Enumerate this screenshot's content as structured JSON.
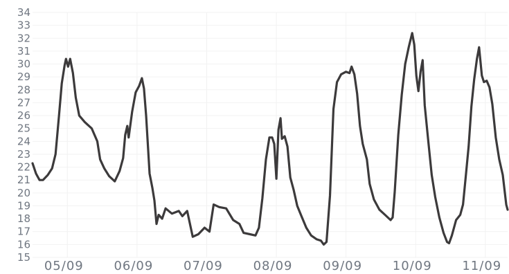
{
  "chart_data": {
    "type": "line",
    "title": "",
    "xlabel": "",
    "ylabel": "",
    "grid": true,
    "ylim": [
      15,
      34
    ],
    "xlim": [
      0,
      6.82
    ],
    "yticks": [
      15,
      16,
      17,
      18,
      19,
      20,
      21,
      22,
      23,
      24,
      25,
      26,
      27,
      28,
      29,
      30,
      31,
      32,
      33,
      34
    ],
    "x_ticks": [
      {
        "label": "05/09",
        "x": 0.5
      },
      {
        "label": "06/09",
        "x": 1.5
      },
      {
        "label": "07/09",
        "x": 2.5
      },
      {
        "label": "08/09",
        "x": 3.5
      },
      {
        "label": "09/09",
        "x": 4.5
      },
      {
        "label": "10/09",
        "x": 5.5
      },
      {
        "label": "11/09",
        "x": 6.5
      }
    ],
    "series": [
      {
        "color": "#3c3a3b",
        "points": [
          [
            0.0,
            22.3
          ],
          [
            0.05,
            21.5
          ],
          [
            0.1,
            21.0
          ],
          [
            0.15,
            21.0
          ],
          [
            0.22,
            21.4
          ],
          [
            0.28,
            21.9
          ],
          [
            0.33,
            23.0
          ],
          [
            0.38,
            26.0
          ],
          [
            0.42,
            28.5
          ],
          [
            0.46,
            29.9
          ],
          [
            0.48,
            30.4
          ],
          [
            0.51,
            29.8
          ],
          [
            0.54,
            30.4
          ],
          [
            0.58,
            29.3
          ],
          [
            0.62,
            27.4
          ],
          [
            0.67,
            26.0
          ],
          [
            0.75,
            25.5
          ],
          [
            0.85,
            25.0
          ],
          [
            0.93,
            24.0
          ],
          [
            0.97,
            22.6
          ],
          [
            1.03,
            21.9
          ],
          [
            1.1,
            21.3
          ],
          [
            1.18,
            20.9
          ],
          [
            1.25,
            21.7
          ],
          [
            1.3,
            22.7
          ],
          [
            1.33,
            24.5
          ],
          [
            1.36,
            25.2
          ],
          [
            1.38,
            24.3
          ],
          [
            1.43,
            26.3
          ],
          [
            1.48,
            27.8
          ],
          [
            1.53,
            28.3
          ],
          [
            1.57,
            28.9
          ],
          [
            1.6,
            28.1
          ],
          [
            1.63,
            26.0
          ],
          [
            1.68,
            21.5
          ],
          [
            1.72,
            20.4
          ],
          [
            1.75,
            19.4
          ],
          [
            1.78,
            17.6
          ],
          [
            1.81,
            18.3
          ],
          [
            1.86,
            18.0
          ],
          [
            1.91,
            18.8
          ],
          [
            2.0,
            18.4
          ],
          [
            2.1,
            18.6
          ],
          [
            2.15,
            18.2
          ],
          [
            2.22,
            18.6
          ],
          [
            2.3,
            16.6
          ],
          [
            2.38,
            16.8
          ],
          [
            2.47,
            17.3
          ],
          [
            2.54,
            17.0
          ],
          [
            2.6,
            19.1
          ],
          [
            2.68,
            18.9
          ],
          [
            2.78,
            18.8
          ],
          [
            2.88,
            17.9
          ],
          [
            2.97,
            17.6
          ],
          [
            3.03,
            16.9
          ],
          [
            3.12,
            16.8
          ],
          [
            3.2,
            16.7
          ],
          [
            3.25,
            17.3
          ],
          [
            3.3,
            19.6
          ],
          [
            3.35,
            22.6
          ],
          [
            3.4,
            24.3
          ],
          [
            3.44,
            24.3
          ],
          [
            3.47,
            23.8
          ],
          [
            3.5,
            21.1
          ],
          [
            3.53,
            24.9
          ],
          [
            3.56,
            25.8
          ],
          [
            3.58,
            24.2
          ],
          [
            3.62,
            24.4
          ],
          [
            3.66,
            23.6
          ],
          [
            3.7,
            21.2
          ],
          [
            3.75,
            20.2
          ],
          [
            3.8,
            19.0
          ],
          [
            3.86,
            18.2
          ],
          [
            3.93,
            17.3
          ],
          [
            4.0,
            16.7
          ],
          [
            4.08,
            16.4
          ],
          [
            4.14,
            16.3
          ],
          [
            4.18,
            16.0
          ],
          [
            4.22,
            16.2
          ],
          [
            4.27,
            19.8
          ],
          [
            4.32,
            26.5
          ],
          [
            4.37,
            28.6
          ],
          [
            4.43,
            29.2
          ],
          [
            4.5,
            29.4
          ],
          [
            4.55,
            29.3
          ],
          [
            4.58,
            29.8
          ],
          [
            4.62,
            29.2
          ],
          [
            4.66,
            27.7
          ],
          [
            4.7,
            25.2
          ],
          [
            4.74,
            23.8
          ],
          [
            4.8,
            22.6
          ],
          [
            4.84,
            20.7
          ],
          [
            4.9,
            19.5
          ],
          [
            4.98,
            18.7
          ],
          [
            5.06,
            18.3
          ],
          [
            5.14,
            17.9
          ],
          [
            5.17,
            18.1
          ],
          [
            5.2,
            20.1
          ],
          [
            5.25,
            24.5
          ],
          [
            5.3,
            27.6
          ],
          [
            5.35,
            30.0
          ],
          [
            5.4,
            31.3
          ],
          [
            5.45,
            32.4
          ],
          [
            5.48,
            31.5
          ],
          [
            5.51,
            29.1
          ],
          [
            5.54,
            27.9
          ],
          [
            5.57,
            29.4
          ],
          [
            5.6,
            30.3
          ],
          [
            5.63,
            26.8
          ],
          [
            5.68,
            24.1
          ],
          [
            5.73,
            21.4
          ],
          [
            5.78,
            19.7
          ],
          [
            5.84,
            18.1
          ],
          [
            5.9,
            16.9
          ],
          [
            5.95,
            16.2
          ],
          [
            5.98,
            16.1
          ],
          [
            6.02,
            16.7
          ],
          [
            6.08,
            17.9
          ],
          [
            6.14,
            18.3
          ],
          [
            6.18,
            19.1
          ],
          [
            6.22,
            21.3
          ],
          [
            6.26,
            23.6
          ],
          [
            6.3,
            26.7
          ],
          [
            6.34,
            28.8
          ],
          [
            6.38,
            30.4
          ],
          [
            6.41,
            31.3
          ],
          [
            6.45,
            29.1
          ],
          [
            6.48,
            28.6
          ],
          [
            6.52,
            28.7
          ],
          [
            6.56,
            28.2
          ],
          [
            6.6,
            26.9
          ],
          [
            6.65,
            24.3
          ],
          [
            6.7,
            22.6
          ],
          [
            6.75,
            21.4
          ],
          [
            6.8,
            19.1
          ],
          [
            6.82,
            18.7
          ]
        ]
      }
    ]
  }
}
